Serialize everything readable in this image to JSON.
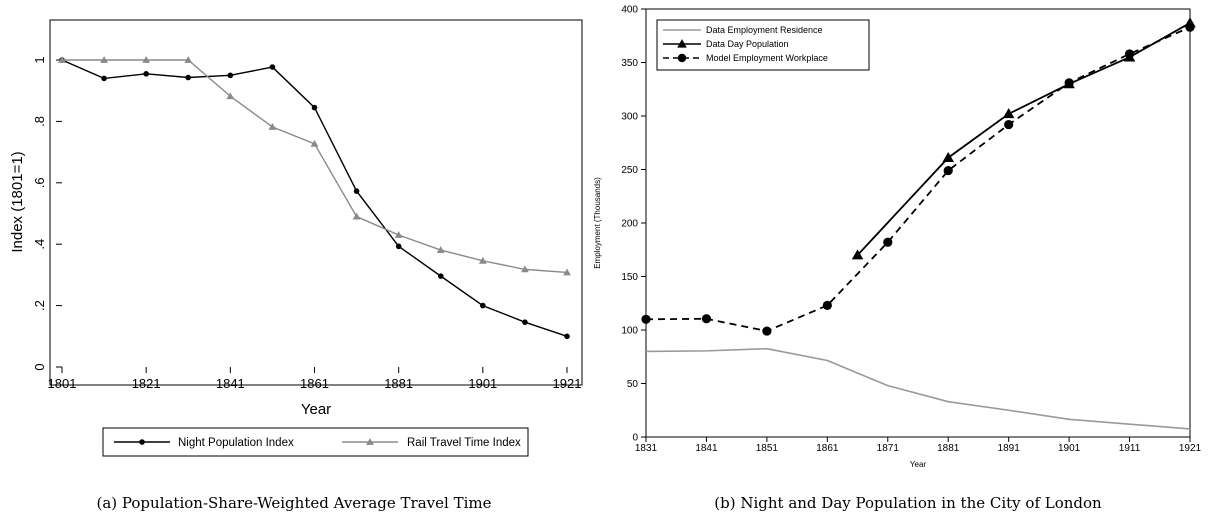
{
  "figure": {
    "caption_a": "(a) Population-Share-Weighted Average Travel Time",
    "caption_b": "(b) Night and Day Population in the City of London"
  },
  "chart_data": [
    {
      "type": "line",
      "panel": "a",
      "xlabel": "Year",
      "ylabel": "Index (1801=1)",
      "xlim": [
        1801,
        1921
      ],
      "ylim": [
        0,
        1
      ],
      "xticks": [
        "1801",
        "1821",
        "1841",
        "1861",
        "1881",
        "1901",
        "1921"
      ],
      "yticks": [
        "0",
        ".2",
        ".4",
        ".6",
        ".8",
        "1"
      ],
      "grid": false,
      "legend_position": "bottom",
      "series": [
        {
          "name": "Night Population Index",
          "color": "#000000",
          "marker": "circle",
          "x": [
            1801,
            1811,
            1821,
            1831,
            1841,
            1851,
            1861,
            1871,
            1881,
            1891,
            1901,
            1911,
            1921
          ],
          "values": [
            1.0,
            0.94,
            0.955,
            0.943,
            0.95,
            0.977,
            0.845,
            0.573,
            0.393,
            0.296,
            0.2,
            0.146,
            0.1
          ]
        },
        {
          "name": "Rail Travel Time Index",
          "color": "#8a8a8a",
          "marker": "triangle",
          "x": [
            1801,
            1811,
            1821,
            1831,
            1841,
            1851,
            1861,
            1871,
            1881,
            1891,
            1901,
            1911,
            1921
          ],
          "values": [
            1.0,
            1.0,
            1.0,
            1.0,
            0.882,
            0.782,
            0.727,
            0.49,
            0.43,
            0.381,
            0.346,
            0.318,
            0.308
          ]
        }
      ]
    },
    {
      "type": "line",
      "panel": "b",
      "xlabel": "Year",
      "ylabel": "Employment (Thousands)",
      "xlim": [
        1831,
        1921
      ],
      "ylim": [
        0,
        400
      ],
      "xticks": [
        "1831",
        "1841",
        "1851",
        "1861",
        "1871",
        "1881",
        "1891",
        "1901",
        "1911",
        "1921"
      ],
      "yticks": [
        "0",
        "50",
        "100",
        "150",
        "200",
        "250",
        "300",
        "350",
        "400"
      ],
      "grid": false,
      "legend_position": "top-left",
      "series": [
        {
          "name": "Data Employment Residence",
          "color": "#999999",
          "marker": "none",
          "dash": "solid",
          "x": [
            1831,
            1841,
            1851,
            1861,
            1871,
            1881,
            1891,
            1901,
            1911,
            1921
          ],
          "values": [
            80,
            80.5,
            82.5,
            71.5,
            48,
            33,
            25,
            16.5,
            12,
            7.5
          ]
        },
        {
          "name": "Data Day Population",
          "color": "#000000",
          "marker": "triangle",
          "dash": "solid",
          "x": [
            1866,
            1881,
            1891,
            1901,
            1911,
            1921
          ],
          "values": [
            170,
            261,
            302,
            330,
            355,
            387
          ]
        },
        {
          "name": "Model Employment Workplace",
          "color": "#000000",
          "marker": "circle",
          "dash": "dashed",
          "x": [
            1831,
            1841,
            1851,
            1861,
            1871,
            1881,
            1891,
            1901,
            1911,
            1921
          ],
          "values": [
            110,
            110.5,
            99,
            123,
            182,
            249,
            292,
            331,
            358,
            383
          ]
        }
      ]
    }
  ]
}
